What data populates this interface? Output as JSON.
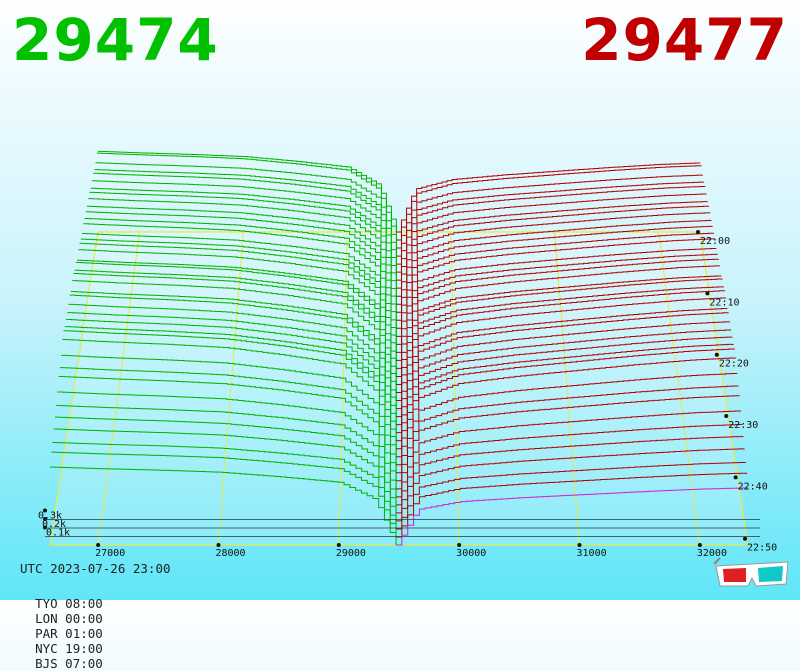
{
  "prices": {
    "bid": "29474",
    "ask": "29477"
  },
  "colors": {
    "bid": "#00b400",
    "ask": "#b40000",
    "grid": "#e8e84a",
    "accent": "#d020d0"
  },
  "chart_data": {
    "type": "area",
    "title": "",
    "x_ticks": [
      "27000",
      "28000",
      "29000",
      "30000",
      "31000",
      "32000"
    ],
    "x_range": [
      26600,
      32400
    ],
    "time_ticks": [
      "22:00",
      "22:10",
      "22:20",
      "22:30",
      "22:40",
      "22:50"
    ],
    "volume_ticks": [
      "0.1k",
      "0.2k",
      "0.3k"
    ],
    "mid_price": 29475,
    "depth_profile_bid": [
      [
        26600,
        1540
      ],
      [
        27000,
        1510
      ],
      [
        27500,
        1480
      ],
      [
        28000,
        1440
      ],
      [
        28500,
        1350
      ],
      [
        29000,
        1240
      ],
      [
        29300,
        900
      ],
      [
        29475,
        0
      ]
    ],
    "depth_profile_ask": [
      [
        29475,
        0
      ],
      [
        29650,
        820
      ],
      [
        30000,
        1000
      ],
      [
        30500,
        1090
      ],
      [
        31000,
        1160
      ],
      [
        31500,
        1230
      ],
      [
        32000,
        1290
      ],
      [
        32400,
        1320
      ]
    ],
    "snapshots": 40,
    "grid": true
  },
  "footer": {
    "utc": "UTC 2023-07-26 23:00",
    "zones": [
      "TYO 08:00",
      "LON 00:00",
      "PAR 01:00",
      "NYC 19:00",
      "BJS 07:00"
    ]
  },
  "icons": {
    "glasses": "3d-glasses-icon"
  }
}
